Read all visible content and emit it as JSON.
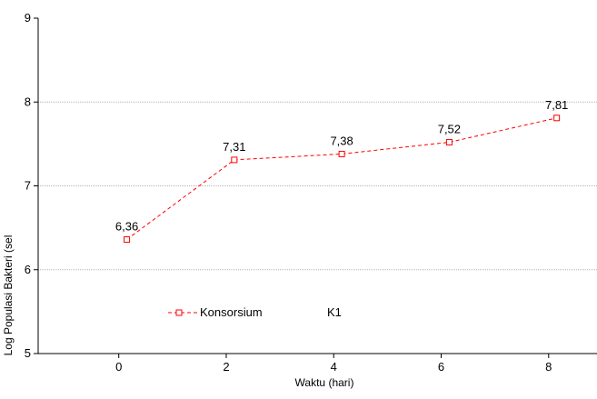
{
  "chart_data": {
    "type": "line",
    "xlabel": "Waktu (hari)",
    "ylabel": "Log Populasi Bakteri (sel",
    "x_ticks": [
      0,
      2,
      4,
      6,
      8
    ],
    "y_ticks": [
      5,
      6,
      7,
      8,
      9
    ],
    "xlim": [
      -1.5,
      8.9
    ],
    "ylim": [
      5,
      9
    ],
    "grid": true,
    "legend_position": "lower-left inside plot",
    "series": [
      {
        "name": "Konsorsium",
        "color": "#ff0000",
        "marker": "square",
        "line_style": "dashed",
        "x": [
          0.15,
          2.15,
          4.15,
          6.15,
          8.15
        ],
        "values": [
          6.36,
          7.31,
          7.38,
          7.52,
          7.81
        ],
        "labels": [
          "6,36",
          "7,31",
          "7,38",
          "7,52",
          "7,81"
        ]
      }
    ],
    "legend": {
      "entries": [
        "Konsorsium",
        "K1"
      ]
    }
  }
}
